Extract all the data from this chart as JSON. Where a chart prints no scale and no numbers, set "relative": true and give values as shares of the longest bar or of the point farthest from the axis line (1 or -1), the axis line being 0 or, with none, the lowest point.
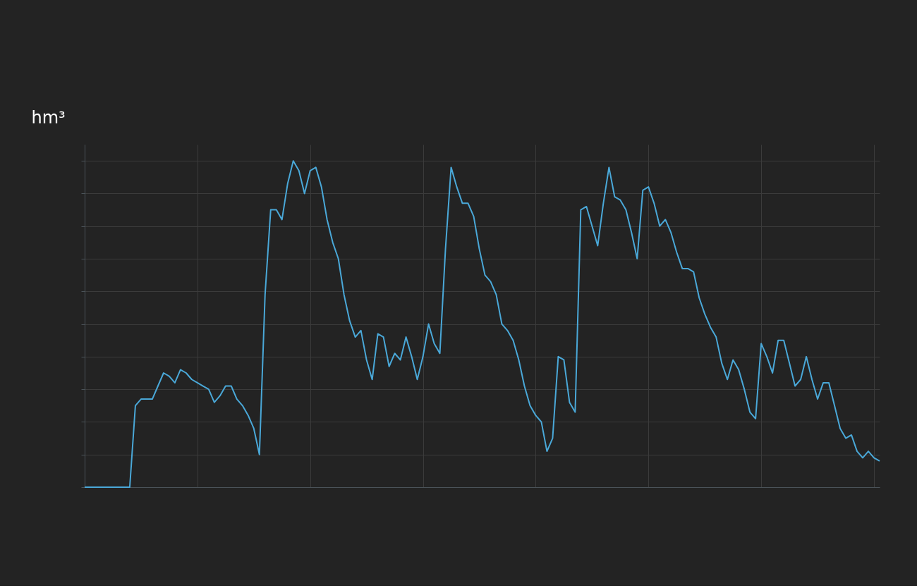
{
  "chart_data": {
    "type": "line",
    "ylabel": "hm³",
    "relative": true,
    "grid": true,
    "tick_labels": false,
    "categories": [
      null,
      null,
      null,
      null,
      null,
      null,
      null,
      null,
      null,
      null,
      null,
      null,
      null,
      null,
      null,
      null,
      null,
      null,
      null,
      null,
      null,
      null,
      null,
      null,
      null,
      null,
      null,
      null,
      null,
      null,
      null,
      null,
      null,
      null,
      null,
      null,
      null,
      null,
      null,
      null,
      null,
      null,
      null,
      null,
      null,
      null,
      null,
      null,
      null,
      null,
      null,
      null,
      null,
      null,
      null,
      null,
      null,
      null,
      null,
      null,
      null,
      null,
      null,
      null,
      null,
      null,
      null,
      null,
      null,
      null,
      null,
      null,
      null,
      null,
      null,
      null,
      null,
      null,
      null,
      null,
      null,
      null,
      null,
      null,
      null,
      null,
      null,
      null,
      null,
      null,
      null,
      null,
      null,
      null,
      null,
      null,
      null,
      null,
      null,
      null,
      null,
      null,
      null,
      null,
      null,
      null,
      null,
      null,
      null,
      null,
      null,
      null,
      null,
      null,
      null,
      null,
      null,
      null,
      null,
      null,
      null,
      null,
      null,
      null,
      null,
      null,
      null,
      null,
      null,
      null,
      null,
      null,
      null,
      null,
      null,
      null,
      null,
      null,
      null,
      null,
      null,
      null
    ],
    "series": [
      {
        "color": "#4aa8d8",
        "values": [
          0,
          0,
          0,
          0,
          0,
          0,
          0,
          0,
          0,
          0.25,
          0.27,
          0.27,
          0.27,
          0.31,
          0.35,
          0.34,
          0.32,
          0.36,
          0.35,
          0.33,
          0.32,
          0.31,
          0.3,
          0.26,
          0.28,
          0.31,
          0.31,
          0.27,
          0.25,
          0.22,
          0.18,
          0.1,
          0.59,
          0.85,
          0.85,
          0.82,
          0.93,
          1.0,
          0.97,
          0.9,
          0.97,
          0.98,
          0.92,
          0.82,
          0.75,
          0.7,
          0.59,
          0.51,
          0.46,
          0.48,
          0.39,
          0.33,
          0.47,
          0.46,
          0.37,
          0.41,
          0.39,
          0.46,
          0.4,
          0.33,
          0.4,
          0.5,
          0.44,
          0.41,
          0.73,
          0.98,
          0.92,
          0.87,
          0.87,
          0.83,
          0.73,
          0.65,
          0.63,
          0.59,
          0.5,
          0.48,
          0.45,
          0.39,
          0.31,
          0.25,
          0.22,
          0.2,
          0.11,
          0.15,
          0.4,
          0.39,
          0.26,
          0.23,
          0.85,
          0.86,
          0.8,
          0.74,
          0.87,
          0.98,
          0.89,
          0.88,
          0.85,
          0.78,
          0.7,
          0.91,
          0.92,
          0.87,
          0.8,
          0.82,
          0.78,
          0.72,
          0.67,
          0.67,
          0.66,
          0.58,
          0.53,
          0.49,
          0.46,
          0.38,
          0.33,
          0.39,
          0.36,
          0.3,
          0.23,
          0.21,
          0.44,
          0.4,
          0.35,
          0.45,
          0.45,
          0.38,
          0.31,
          0.33,
          0.4,
          0.33,
          0.27,
          0.32,
          0.32,
          0.25,
          0.18,
          0.15,
          0.16,
          0.11,
          0.09,
          0.11,
          0.09,
          0.08
        ]
      }
    ]
  }
}
